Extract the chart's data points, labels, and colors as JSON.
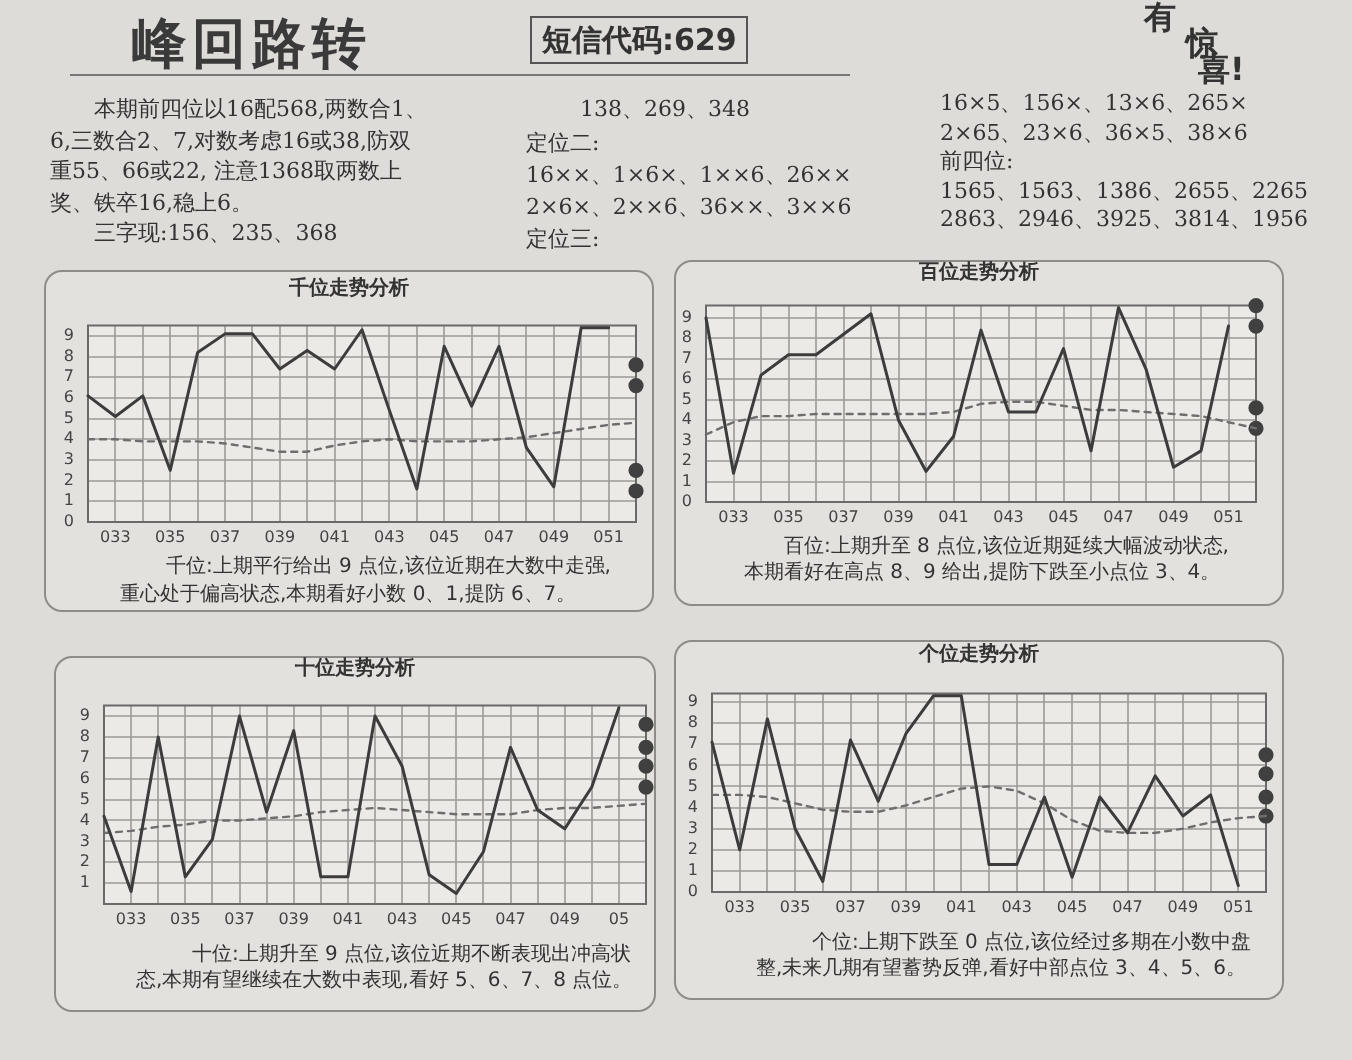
{
  "chart_data": [
    {
      "type": "other",
      "title": "峰回路转",
      "annotations": [
        "短信代码:629",
        "有惊喜!",
        "本期前四位以16配568,两数合1、6,三数合2、7,对数考虑16或38,防双重55、66或22, 注意1368取两数上奖、铁卒16,稳上6。",
        "三字现:156、235、368",
        "138、269、348",
        "定位二:\n16××、1×6×、1××6、26××\n2×6×、2××6、36××、3××6\n定位三:",
        "16×5、156×、13×6、265×\n2×65、23×6、36×5、38×6\n前四位:\n1565、1563、1386、2655、2265\n2863、2946、3925、3814、1956"
      ]
    },
    {
      "type": "line",
      "title": "千位走势分析",
      "categories": [
        null,
        "033",
        null,
        "035",
        null,
        "037",
        null,
        "039",
        null,
        "041",
        null,
        "043",
        null,
        "045",
        null,
        "047",
        null,
        "049",
        null,
        "051",
        null
      ],
      "ylim": [
        0,
        9.5
      ],
      "yticks": [
        0,
        1,
        2,
        3,
        4,
        5,
        6,
        7,
        8,
        9
      ],
      "grid": true,
      "series": [
        {
          "type": "line",
          "color": "#3c3c3c",
          "values": [
            6.1,
            5.1,
            6.1,
            2.5,
            8.2,
            9.1,
            9.1,
            7.4,
            8.3,
            7.4,
            9.3,
            5.4,
            1.6,
            8.5,
            5.6,
            8.5,
            3.6,
            1.7,
            9.4,
            9.4,
            null
          ]
        },
        {
          "type": "line",
          "color": "#6e6e6e",
          "line_style": "dashed",
          "values": [
            4.0,
            4.0,
            3.9,
            3.9,
            3.9,
            3.8,
            3.6,
            3.4,
            3.4,
            3.7,
            3.9,
            4.0,
            3.9,
            3.9,
            3.9,
            4.0,
            4.1,
            4.3,
            4.5,
            4.7,
            4.8
          ]
        },
        {
          "type": "scatter",
          "color": "#404040",
          "marker": "circle",
          "values": [
            null,
            null,
            null,
            null,
            null,
            null,
            null,
            null,
            null,
            null,
            null,
            null,
            null,
            null,
            null,
            null,
            null,
            null,
            null,
            null,
            7.6
          ]
        },
        {
          "type": "scatter",
          "color": "#404040",
          "marker": "circle",
          "values": [
            null,
            null,
            null,
            null,
            null,
            null,
            null,
            null,
            null,
            null,
            null,
            null,
            null,
            null,
            null,
            null,
            null,
            null,
            null,
            null,
            6.6
          ]
        },
        {
          "type": "scatter",
          "color": "#404040",
          "marker": "circle",
          "values": [
            null,
            null,
            null,
            null,
            null,
            null,
            null,
            null,
            null,
            null,
            null,
            null,
            null,
            null,
            null,
            null,
            null,
            null,
            null,
            null,
            2.5
          ]
        },
        {
          "type": "scatter",
          "color": "#404040",
          "marker": "circle",
          "values": [
            null,
            null,
            null,
            null,
            null,
            null,
            null,
            null,
            null,
            null,
            null,
            null,
            null,
            null,
            null,
            null,
            null,
            null,
            null,
            null,
            1.5
          ]
        }
      ],
      "annotations": [
        "千位:上期平行给出 9 点位,该位近期在大数中走强,重心处于偏高状态,本期看好小数 0、1,提防 6、7。"
      ]
    },
    {
      "type": "line",
      "title": "百位走势分析",
      "categories": [
        null,
        "033",
        null,
        "035",
        null,
        "037",
        null,
        "039",
        null,
        "041",
        null,
        "043",
        null,
        "045",
        null,
        "047",
        null,
        "049",
        null,
        "051",
        null
      ],
      "ylim": [
        0,
        9.6
      ],
      "yticks": [
        0,
        1,
        2,
        3,
        4,
        5,
        6,
        7,
        8,
        9
      ],
      "grid": true,
      "series": [
        {
          "type": "line",
          "color": "#3c3c3c",
          "values": [
            9.0,
            1.4,
            6.2,
            7.2,
            7.2,
            8.2,
            9.2,
            4.0,
            1.5,
            3.2,
            8.4,
            4.4,
            4.4,
            7.5,
            2.5,
            9.5,
            6.5,
            1.7,
            2.5,
            8.6,
            null
          ]
        },
        {
          "type": "line",
          "color": "#6e6e6e",
          "line_style": "dashed",
          "values": [
            3.3,
            3.9,
            4.2,
            4.2,
            4.3,
            4.3,
            4.3,
            4.3,
            4.3,
            4.4,
            4.8,
            4.9,
            4.9,
            4.7,
            4.5,
            4.5,
            4.4,
            4.3,
            4.2,
            3.9,
            3.6
          ]
        },
        {
          "type": "scatter",
          "color": "#404040",
          "marker": "circle",
          "values": [
            null,
            null,
            null,
            null,
            null,
            null,
            null,
            null,
            null,
            null,
            null,
            null,
            null,
            null,
            null,
            null,
            null,
            null,
            null,
            null,
            9.6
          ]
        },
        {
          "type": "scatter",
          "color": "#404040",
          "marker": "circle",
          "values": [
            null,
            null,
            null,
            null,
            null,
            null,
            null,
            null,
            null,
            null,
            null,
            null,
            null,
            null,
            null,
            null,
            null,
            null,
            null,
            null,
            8.6
          ]
        },
        {
          "type": "scatter",
          "color": "#404040",
          "marker": "circle",
          "values": [
            null,
            null,
            null,
            null,
            null,
            null,
            null,
            null,
            null,
            null,
            null,
            null,
            null,
            null,
            null,
            null,
            null,
            null,
            null,
            null,
            4.6
          ]
        },
        {
          "type": "scatter",
          "color": "#404040",
          "marker": "circle",
          "values": [
            null,
            null,
            null,
            null,
            null,
            null,
            null,
            null,
            null,
            null,
            null,
            null,
            null,
            null,
            null,
            null,
            null,
            null,
            null,
            null,
            3.6
          ]
        }
      ],
      "annotations": [
        "百位:上期升至 8 点位,该位近期延续大幅波动状态,本期看好在高点 8、9 给出,提防下跌至小点位 3、4。"
      ]
    },
    {
      "type": "line",
      "title": "十位走势分析",
      "categories": [
        null,
        "033",
        null,
        "035",
        null,
        "037",
        null,
        "039",
        null,
        "041",
        null,
        "043",
        null,
        "045",
        null,
        "047",
        null,
        "049",
        null,
        "05",
        null
      ],
      "ylim": [
        0,
        9.5
      ],
      "yticks": [
        1,
        2,
        3,
        4,
        5,
        6,
        7,
        8,
        9
      ],
      "grid": true,
      "series": [
        {
          "type": "line",
          "color": "#3c3c3c",
          "values": [
            4.2,
            0.6,
            8.0,
            1.3,
            3.1,
            9.0,
            4.4,
            8.3,
            1.3,
            1.3,
            9.0,
            6.6,
            1.4,
            0.5,
            2.5,
            7.5,
            4.5,
            3.6,
            5.6,
            9.4,
            null
          ]
        },
        {
          "type": "line",
          "color": "#6e6e6e",
          "line_style": "dashed",
          "values": [
            3.4,
            3.5,
            3.7,
            3.8,
            4.0,
            4.0,
            4.1,
            4.2,
            4.4,
            4.5,
            4.6,
            4.5,
            4.4,
            4.3,
            4.3,
            4.3,
            4.5,
            4.6,
            4.6,
            4.7,
            4.8
          ]
        },
        {
          "type": "scatter",
          "color": "#404040",
          "marker": "circle",
          "values": [
            null,
            null,
            null,
            null,
            null,
            null,
            null,
            null,
            null,
            null,
            null,
            null,
            null,
            null,
            null,
            null,
            null,
            null,
            null,
            null,
            8.6
          ]
        },
        {
          "type": "scatter",
          "color": "#404040",
          "marker": "circle",
          "values": [
            null,
            null,
            null,
            null,
            null,
            null,
            null,
            null,
            null,
            null,
            null,
            null,
            null,
            null,
            null,
            null,
            null,
            null,
            null,
            null,
            7.5
          ]
        },
        {
          "type": "scatter",
          "color": "#404040",
          "marker": "circle",
          "values": [
            null,
            null,
            null,
            null,
            null,
            null,
            null,
            null,
            null,
            null,
            null,
            null,
            null,
            null,
            null,
            null,
            null,
            null,
            null,
            null,
            6.6
          ]
        },
        {
          "type": "scatter",
          "color": "#404040",
          "marker": "circle",
          "values": [
            null,
            null,
            null,
            null,
            null,
            null,
            null,
            null,
            null,
            null,
            null,
            null,
            null,
            null,
            null,
            null,
            null,
            null,
            null,
            null,
            5.6
          ]
        }
      ],
      "annotations": [
        "十位:上期升至 9 点位,该位近期不断表现出冲高状态,本期有望继续在大数中表现,看好 5、6、7、8 点位。"
      ]
    },
    {
      "type": "line",
      "title": "个位走势分析",
      "categories": [
        null,
        "033",
        null,
        "035",
        null,
        "037",
        null,
        "039",
        null,
        "041",
        null,
        "043",
        null,
        "045",
        null,
        "047",
        null,
        "049",
        null,
        "051",
        null
      ],
      "ylim": [
        0,
        9.4
      ],
      "yticks": [
        0,
        1,
        2,
        3,
        4,
        5,
        6,
        7,
        8,
        9
      ],
      "grid": true,
      "series": [
        {
          "type": "line",
          "color": "#3c3c3c",
          "values": [
            7.1,
            2.0,
            8.2,
            3.0,
            0.5,
            7.2,
            4.3,
            7.5,
            9.3,
            9.3,
            1.3,
            1.3,
            4.5,
            0.7,
            4.5,
            2.8,
            5.5,
            3.6,
            4.6,
            0.3,
            null
          ]
        },
        {
          "type": "line",
          "color": "#6e6e6e",
          "line_style": "dashed",
          "values": [
            4.6,
            4.6,
            4.5,
            4.2,
            3.9,
            3.8,
            3.8,
            4.1,
            4.5,
            4.9,
            5.0,
            4.8,
            4.2,
            3.4,
            2.9,
            2.8,
            2.8,
            3.0,
            3.3,
            3.5,
            3.6
          ]
        },
        {
          "type": "scatter",
          "color": "#404040",
          "marker": "circle",
          "values": [
            null,
            null,
            null,
            null,
            null,
            null,
            null,
            null,
            null,
            null,
            null,
            null,
            null,
            null,
            null,
            null,
            null,
            null,
            null,
            null,
            6.5
          ]
        },
        {
          "type": "scatter",
          "color": "#404040",
          "marker": "circle",
          "values": [
            null,
            null,
            null,
            null,
            null,
            null,
            null,
            null,
            null,
            null,
            null,
            null,
            null,
            null,
            null,
            null,
            null,
            null,
            null,
            null,
            5.6
          ]
        },
        {
          "type": "scatter",
          "color": "#404040",
          "marker": "circle",
          "values": [
            null,
            null,
            null,
            null,
            null,
            null,
            null,
            null,
            null,
            null,
            null,
            null,
            null,
            null,
            null,
            null,
            null,
            null,
            null,
            null,
            4.5
          ]
        },
        {
          "type": "scatter",
          "color": "#404040",
          "marker": "circle",
          "values": [
            null,
            null,
            null,
            null,
            null,
            null,
            null,
            null,
            null,
            null,
            null,
            null,
            null,
            null,
            null,
            null,
            null,
            null,
            null,
            null,
            3.6
          ]
        }
      ],
      "annotations": [
        "个位:上期下跌至 0 点位,该位经过多期在小数中盘整,未来几期有望蓄势反弹,看好中部点位 3、4、5、6。"
      ]
    }
  ]
}
